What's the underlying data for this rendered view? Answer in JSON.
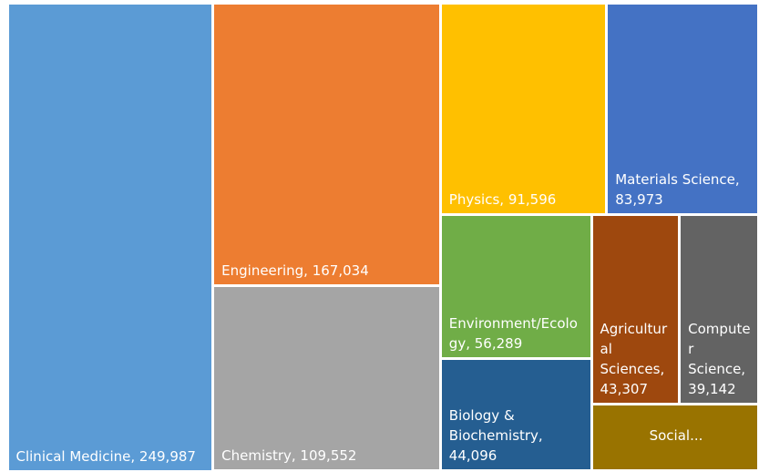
{
  "chart_data": {
    "type": "treemap",
    "categories": [
      "Clinical Medicine,",
      "Engineering,",
      "Chemistry,",
      "Physics,",
      "Materials Science,",
      "Environment/Ecology,",
      "Biology & Biochemistry,",
      "Agricultural Sciences,",
      "Computer Science,",
      "Social..."
    ],
    "values": [
      249987,
      167034,
      109552,
      91596,
      83973,
      56289,
      44096,
      43307,
      39142,
      29000
    ],
    "value_labels": [
      "249,987",
      "167,034",
      "109,552",
      "91,596",
      "83,973",
      "56,289",
      "44,096",
      "43,307",
      "39,142",
      null
    ],
    "colors": [
      "#5b9bd5",
      "#ed7d31",
      "#a5a5a5",
      "#ffc000",
      "#4472c4",
      "#70ad47",
      "#255e91",
      "#9e480e",
      "#636363",
      "#997300"
    ]
  }
}
